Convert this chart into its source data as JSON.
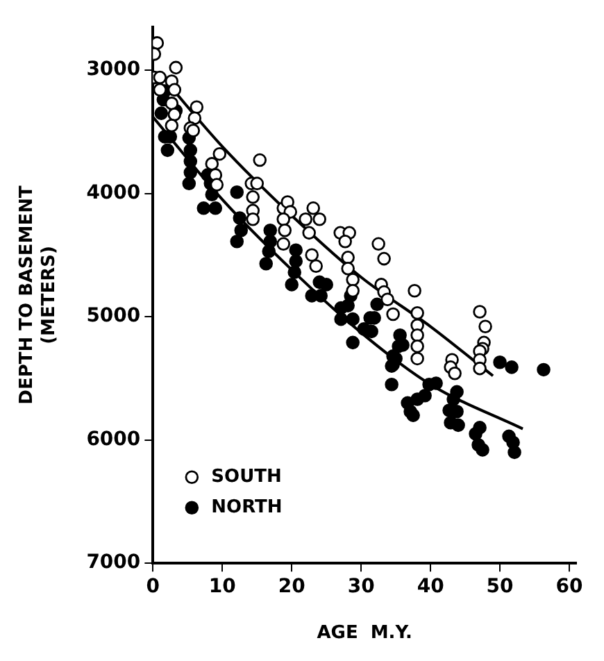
{
  "chart_data": {
    "type": "scatter",
    "xlabel": "AGE  M.Y.",
    "ylabel": "DEPTH TO BASEMENT\n(METERS)",
    "xlim": [
      0,
      61
    ],
    "xticks": [
      0,
      10,
      20,
      30,
      40,
      50,
      60
    ],
    "ylim": [
      7000,
      2650
    ],
    "yticks": [
      3000,
      4000,
      5000,
      6000,
      7000
    ],
    "grid": false,
    "legend": "bottom left",
    "series": [
      {
        "name": "SOUTH",
        "color": "#ffffff",
        "marker": "circle",
        "x": [
          0.6,
          0.2,
          3.3,
          0.2,
          1.0,
          2.7,
          3.1,
          1.0,
          2.7,
          3.1,
          2.7,
          6.3,
          6.0,
          5.4,
          5.8,
          9.6,
          8.5,
          9.0,
          9.2,
          15.4,
          14.2,
          15.0,
          14.4,
          14.4,
          14.4,
          18.8,
          19.4,
          19.8,
          18.8,
          19.0,
          18.8,
          23.1,
          24.0,
          22.0,
          22.5,
          22.9,
          23.5,
          27.0,
          28.3,
          27.7,
          28.1,
          28.1,
          28.8,
          28.8,
          32.5,
          33.3,
          32.9,
          33.3,
          33.8,
          34.6,
          37.7,
          38.1,
          38.1,
          38.1,
          38.1,
          38.1,
          43.1,
          42.9,
          43.5,
          47.1,
          47.9,
          47.7,
          47.5,
          47.1,
          47.1,
          47.1
        ],
        "values": [
          2780,
          2870,
          2980,
          3060,
          3060,
          3090,
          3160,
          3160,
          3270,
          3360,
          3450,
          3300,
          3390,
          3470,
          3490,
          3680,
          3760,
          3850,
          3930,
          3730,
          3920,
          3920,
          4030,
          4140,
          4210,
          4120,
          4070,
          4150,
          4210,
          4300,
          4410,
          4120,
          4210,
          4210,
          4320,
          4500,
          4590,
          4320,
          4320,
          4390,
          4520,
          4610,
          4700,
          4790,
          4410,
          4530,
          4740,
          4800,
          4860,
          4980,
          4790,
          4970,
          5070,
          5150,
          5240,
          5340,
          5350,
          5410,
          5460,
          4960,
          5080,
          5210,
          5260,
          5280,
          5350,
          5420
        ]
      },
      {
        "name": "NORTH",
        "color": "#000000",
        "marker": "circle",
        "x": [
          1.7,
          1.5,
          1.2,
          3.3,
          1.7,
          2.1,
          2.5,
          5.2,
          5.4,
          5.4,
          5.4,
          5.2,
          7.9,
          8.3,
          8.5,
          7.3,
          9.0,
          12.1,
          12.5,
          12.7,
          12.1,
          16.9,
          16.9,
          16.7,
          16.3,
          20.6,
          20.6,
          20.4,
          20.0,
          24.0,
          25.0,
          22.9,
          24.2,
          27.1,
          28.1,
          28.5,
          27.1,
          28.8,
          32.3,
          31.3,
          30.4,
          31.5,
          31.9,
          28.8,
          35.6,
          35.4,
          34.6,
          34.4,
          36.0,
          35.0,
          34.6,
          34.4,
          40.8,
          39.8,
          39.2,
          38.1,
          36.7,
          37.1,
          37.5,
          43.8,
          43.3,
          42.7,
          43.8,
          42.9,
          44.0,
          47.1,
          46.5,
          46.9,
          47.5,
          50.0,
          51.7,
          56.3,
          51.3,
          51.9,
          52.1
        ],
        "values": [
          3170,
          3240,
          3350,
          3330,
          3540,
          3650,
          3540,
          3550,
          3650,
          3740,
          3830,
          3920,
          3850,
          3920,
          4010,
          4120,
          4120,
          3990,
          4200,
          4300,
          4390,
          4300,
          4390,
          4470,
          4570,
          4460,
          4550,
          4640,
          4740,
          4720,
          4740,
          4830,
          4830,
          4930,
          4910,
          4830,
          5020,
          5020,
          4900,
          5010,
          5100,
          5120,
          5010,
          5210,
          5150,
          5240,
          5320,
          5400,
          5230,
          5340,
          5390,
          5550,
          5540,
          5550,
          5640,
          5670,
          5700,
          5770,
          5800,
          5610,
          5670,
          5760,
          5770,
          5860,
          5880,
          5900,
          5950,
          6040,
          6080,
          5370,
          5410,
          5430,
          5970,
          6020,
          6100
        ]
      },
      {
        "type": "line",
        "color": "#000000",
        "marker": "none",
        "x": [
          2,
          10,
          20,
          30,
          40,
          49
        ],
        "values": [
          3100,
          3620,
          4180,
          4680,
          5080,
          5480
        ]
      },
      {
        "type": "line",
        "color": "#000000",
        "marker": "none",
        "x": [
          0,
          10,
          20,
          30,
          40,
          53.3
        ],
        "values": [
          3380,
          4050,
          4620,
          5130,
          5550,
          5910
        ]
      }
    ]
  }
}
